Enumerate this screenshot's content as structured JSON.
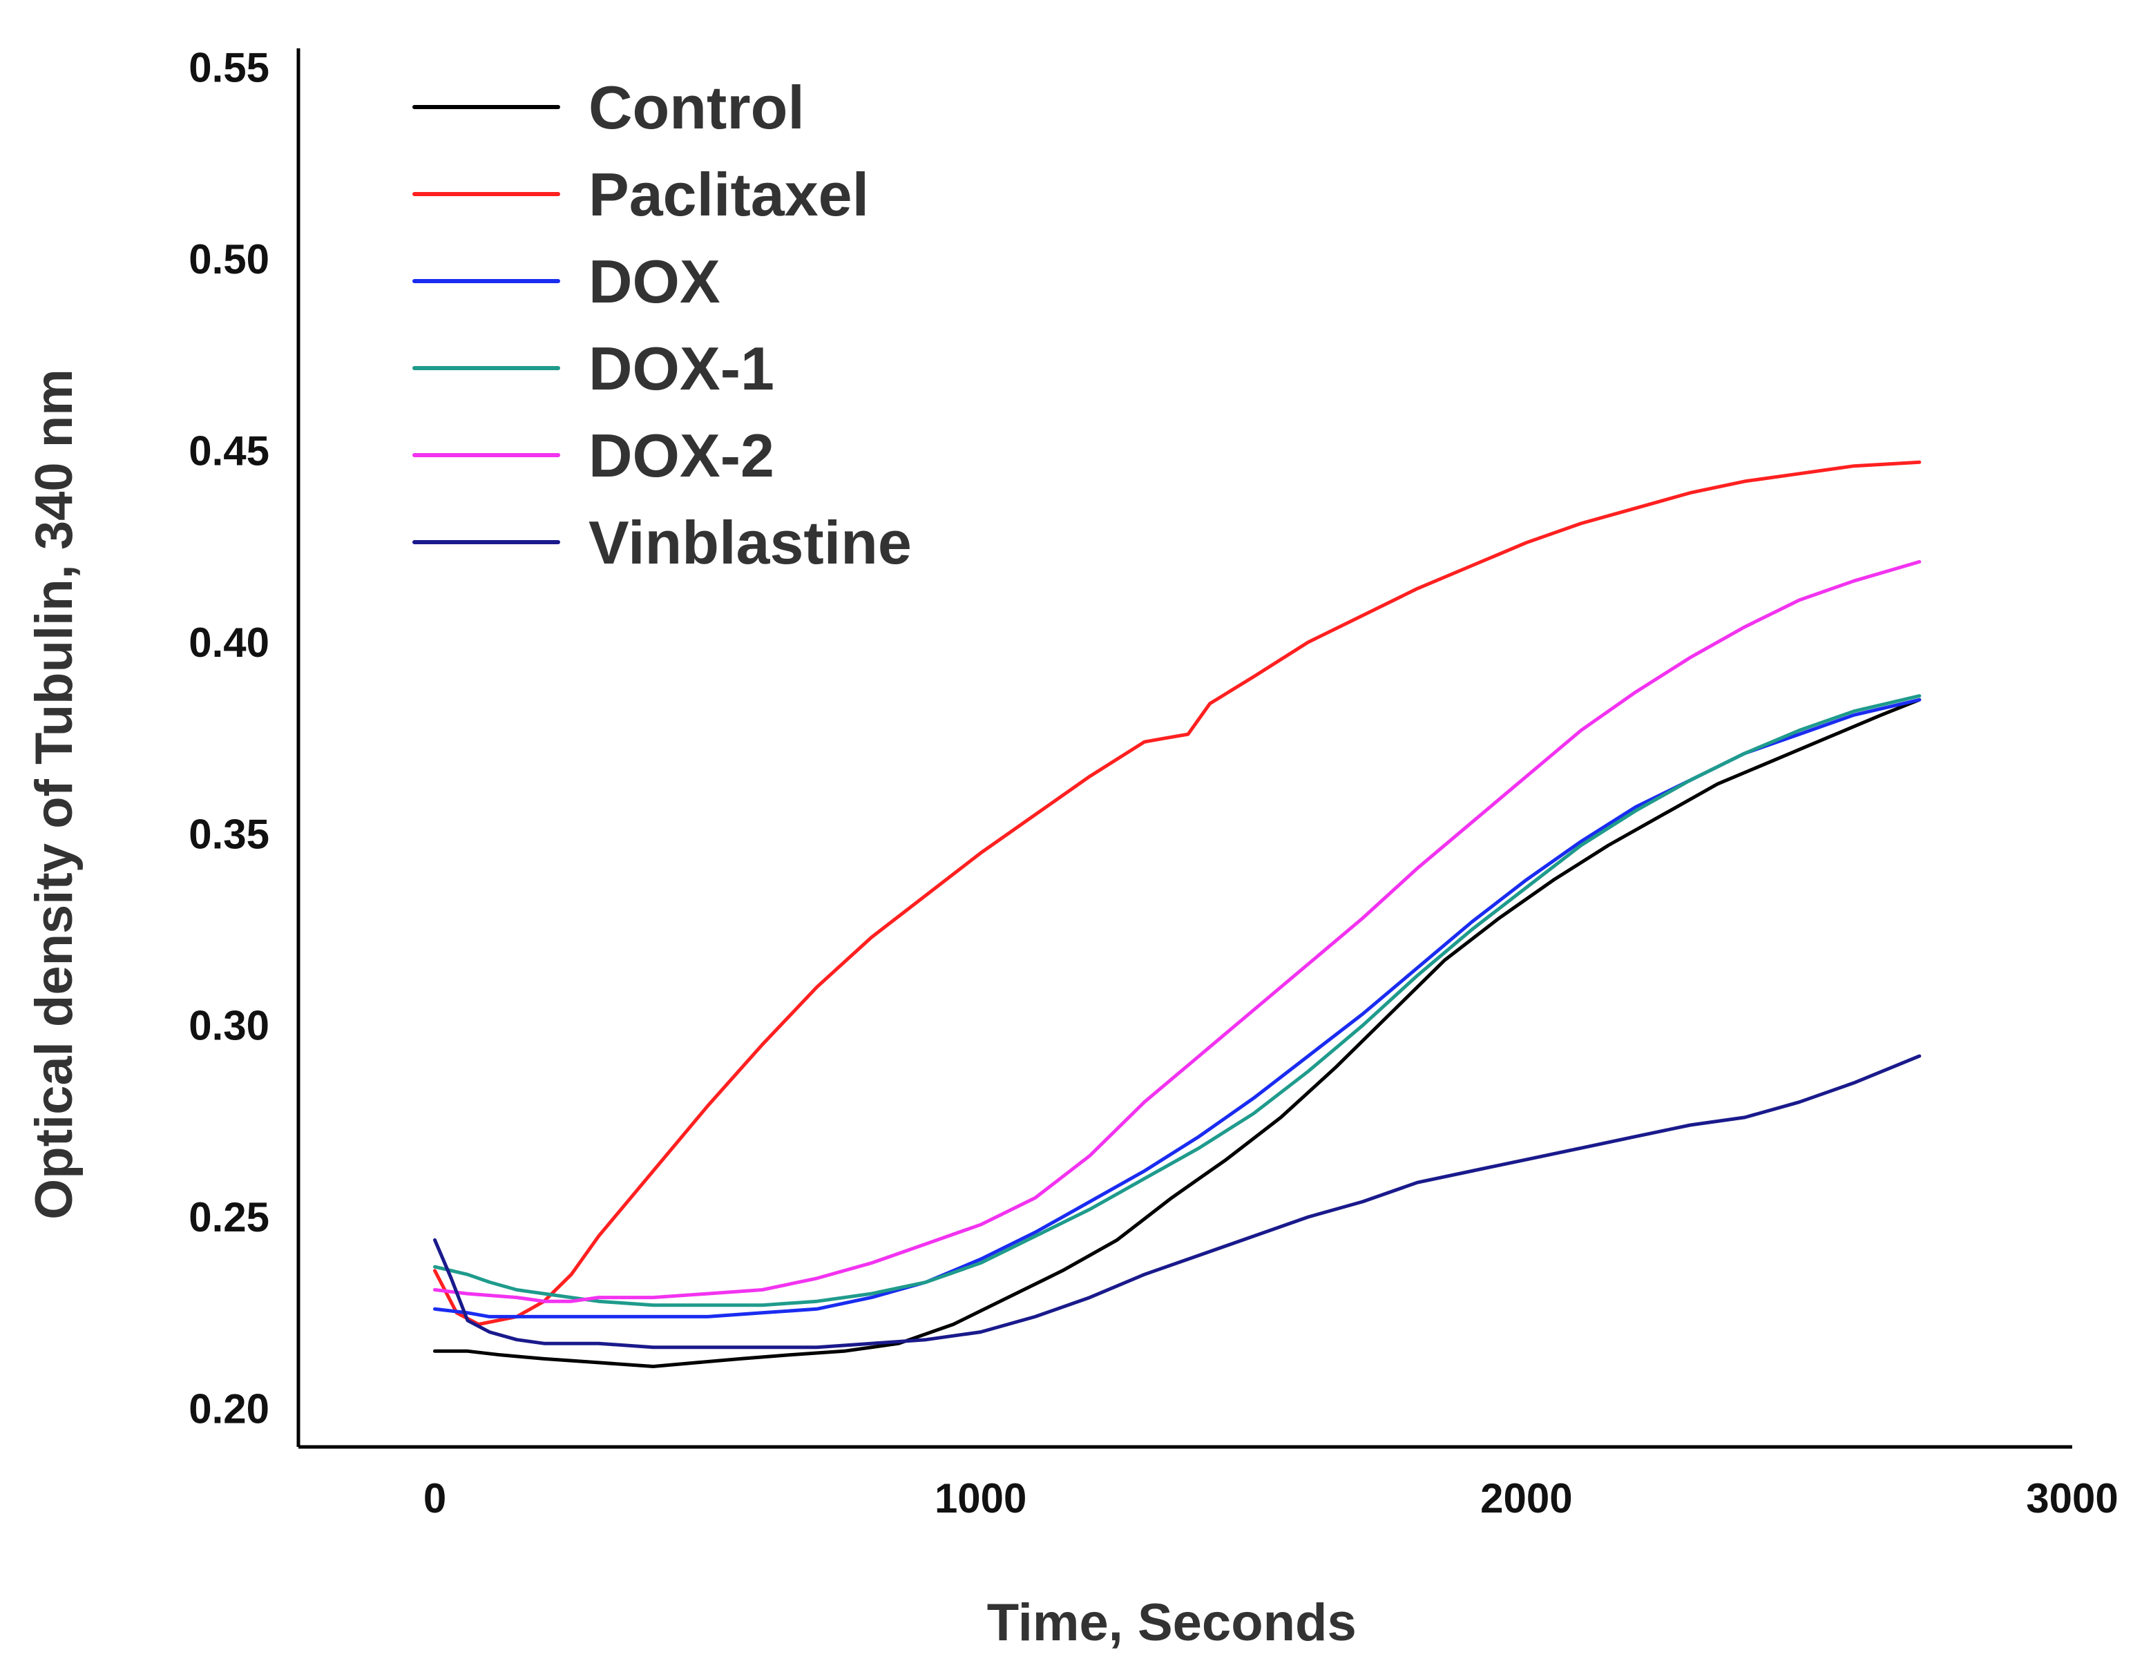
{
  "chart_data": {
    "type": "line",
    "title": "",
    "xlabel": "Time, Seconds",
    "ylabel": "Optical density of Tubulin, 340 nm",
    "xlim": [
      -250,
      3000
    ],
    "ylim": [
      0.19,
      0.555
    ],
    "xticks": [
      0,
      1000,
      2000,
      3000
    ],
    "xtick_labels": [
      "0",
      "1000",
      "2000",
      "3000"
    ],
    "yticks": [
      0.2,
      0.25,
      0.3,
      0.35,
      0.4,
      0.45,
      0.5,
      0.55
    ],
    "ytick_labels": [
      "0.20",
      "0.25",
      "0.30",
      "0.35",
      "0.40",
      "0.45",
      "0.50",
      "0.55"
    ],
    "grid": false,
    "legend_position": "top-left",
    "series": [
      {
        "name": "Control",
        "color": "#000000",
        "x": [
          0,
          60,
          120,
          200,
          300,
          400,
          480,
          560,
          650,
          750,
          850,
          950,
          1050,
          1150,
          1250,
          1350,
          1400,
          1450,
          1550,
          1650,
          1750,
          1850,
          1950,
          2050,
          2150,
          2250,
          2350,
          2450,
          2550,
          2650,
          2720
        ],
        "y": [
          0.215,
          0.215,
          0.214,
          0.213,
          0.212,
          0.211,
          0.212,
          0.213,
          0.214,
          0.215,
          0.217,
          0.222,
          0.229,
          0.236,
          0.244,
          0.255,
          0.26,
          0.265,
          0.276,
          0.289,
          0.303,
          0.317,
          0.328,
          0.338,
          0.347,
          0.355,
          0.363,
          0.369,
          0.375,
          0.381,
          0.385
        ]
      },
      {
        "name": "Paclitaxel",
        "color": "#ff2020",
        "x": [
          0,
          40,
          80,
          150,
          200,
          250,
          300,
          400,
          500,
          600,
          700,
          800,
          900,
          1000,
          1100,
          1200,
          1300,
          1340,
          1380,
          1420,
          1500,
          1600,
          1700,
          1800,
          1900,
          2000,
          2100,
          2200,
          2300,
          2400,
          2500,
          2600,
          2720
        ],
        "y": [
          0.236,
          0.225,
          0.222,
          0.224,
          0.228,
          0.235,
          0.245,
          0.262,
          0.279,
          0.295,
          0.31,
          0.323,
          0.334,
          0.345,
          0.355,
          0.365,
          0.374,
          0.375,
          0.376,
          0.384,
          0.391,
          0.4,
          0.407,
          0.414,
          0.42,
          0.426,
          0.431,
          0.435,
          0.439,
          0.442,
          0.444,
          0.446,
          0.447
        ]
      },
      {
        "name": "DOX",
        "color": "#1a2cf0",
        "x": [
          0,
          60,
          100,
          150,
          200,
          300,
          400,
          500,
          600,
          700,
          800,
          900,
          1000,
          1100,
          1200,
          1300,
          1400,
          1500,
          1600,
          1700,
          1800,
          1900,
          2000,
          2100,
          2200,
          2300,
          2400,
          2500,
          2600,
          2720
        ],
        "y": [
          0.226,
          0.225,
          0.224,
          0.224,
          0.224,
          0.224,
          0.224,
          0.224,
          0.225,
          0.226,
          0.229,
          0.233,
          0.239,
          0.246,
          0.254,
          0.262,
          0.271,
          0.281,
          0.292,
          0.303,
          0.315,
          0.327,
          0.338,
          0.348,
          0.357,
          0.364,
          0.371,
          0.376,
          0.381,
          0.385
        ]
      },
      {
        "name": "DOX-1",
        "color": "#1f9b8c",
        "x": [
          0,
          60,
          100,
          150,
          200,
          300,
          400,
          500,
          600,
          700,
          800,
          900,
          1000,
          1100,
          1200,
          1300,
          1400,
          1500,
          1600,
          1700,
          1800,
          1900,
          2000,
          2100,
          2200,
          2300,
          2400,
          2500,
          2600,
          2720
        ],
        "y": [
          0.237,
          0.235,
          0.233,
          0.231,
          0.23,
          0.228,
          0.227,
          0.227,
          0.227,
          0.228,
          0.23,
          0.233,
          0.238,
          0.245,
          0.252,
          0.26,
          0.268,
          0.277,
          0.288,
          0.3,
          0.313,
          0.325,
          0.336,
          0.347,
          0.356,
          0.364,
          0.371,
          0.377,
          0.382,
          0.386
        ]
      },
      {
        "name": "DOX-2",
        "color": "#f233f0",
        "x": [
          0,
          60,
          150,
          200,
          250,
          300,
          400,
          500,
          600,
          700,
          800,
          900,
          1000,
          1100,
          1200,
          1300,
          1400,
          1500,
          1600,
          1700,
          1800,
          1900,
          2000,
          2100,
          2200,
          2300,
          2400,
          2500,
          2600,
          2720
        ],
        "y": [
          0.231,
          0.23,
          0.229,
          0.228,
          0.228,
          0.229,
          0.229,
          0.23,
          0.231,
          0.234,
          0.238,
          0.243,
          0.248,
          0.255,
          0.266,
          0.28,
          0.292,
          0.304,
          0.316,
          0.328,
          0.341,
          0.353,
          0.365,
          0.377,
          0.387,
          0.396,
          0.404,
          0.411,
          0.416,
          0.421
        ]
      },
      {
        "name": "Vinblastine",
        "color": "#1a1a8c",
        "x": [
          0,
          30,
          60,
          100,
          150,
          200,
          300,
          400,
          500,
          600,
          700,
          800,
          900,
          1000,
          1100,
          1200,
          1300,
          1400,
          1500,
          1600,
          1700,
          1800,
          1900,
          2000,
          2100,
          2200,
          2300,
          2400,
          2500,
          2600,
          2720
        ],
        "y": [
          0.244,
          0.234,
          0.223,
          0.22,
          0.218,
          0.217,
          0.217,
          0.216,
          0.216,
          0.216,
          0.216,
          0.217,
          0.218,
          0.22,
          0.224,
          0.229,
          0.235,
          0.24,
          0.245,
          0.25,
          0.254,
          0.259,
          0.262,
          0.265,
          0.268,
          0.271,
          0.274,
          0.276,
          0.28,
          0.285,
          0.292
        ]
      }
    ]
  }
}
